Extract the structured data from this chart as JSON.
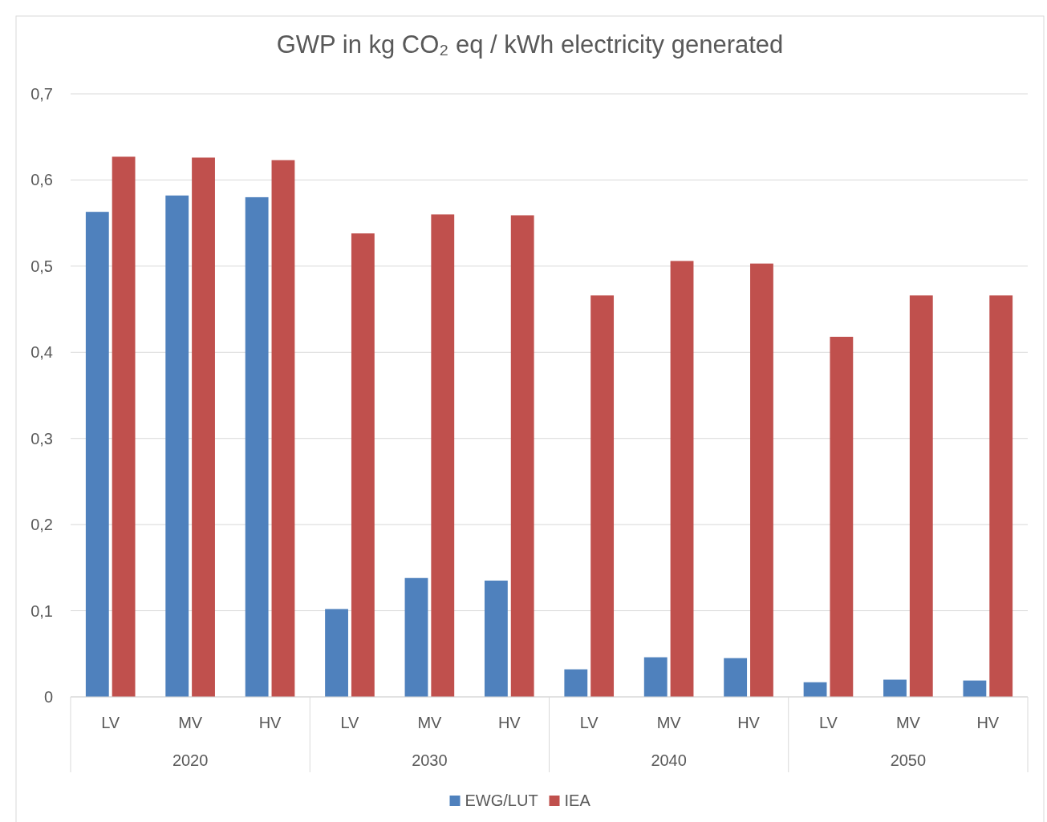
{
  "chart_data": {
    "type": "bar",
    "title": "GWP in kg CO₂ eq / kWh electricity generated",
    "categories": [
      "LV",
      "MV",
      "HV",
      "LV",
      "MV",
      "HV",
      "LV",
      "MV",
      "HV",
      "LV",
      "MV",
      "HV"
    ],
    "annotations": [
      "2020",
      "2030",
      "2040",
      "2050"
    ],
    "series": [
      {
        "name": "EWG/LUT",
        "color": "#4f81bd",
        "values": [
          0.563,
          0.582,
          0.58,
          0.102,
          0.138,
          0.135,
          0.032,
          0.046,
          0.045,
          0.017,
          0.02,
          0.019
        ]
      },
      {
        "name": "IEA",
        "color": "#c0504d",
        "values": [
          0.627,
          0.626,
          0.623,
          0.538,
          0.56,
          0.559,
          0.466,
          0.506,
          0.503,
          0.418,
          0.466,
          0.466
        ]
      }
    ],
    "ylim": [
      0,
      0.7
    ],
    "yticks": [
      0,
      {
        "value": 0.1,
        "label": "0,1"
      },
      {
        "value": 0.2,
        "label": "0,2"
      },
      {
        "value": 0.3,
        "label": "0,3"
      },
      {
        "value": 0.4,
        "label": "0,4"
      },
      {
        "value": 0.5,
        "label": "0,5"
      },
      {
        "value": 0.6,
        "label": "0,6"
      },
      {
        "value": 0.7,
        "label": "0,7"
      }
    ],
    "grid": "y",
    "legend": "bottom"
  }
}
